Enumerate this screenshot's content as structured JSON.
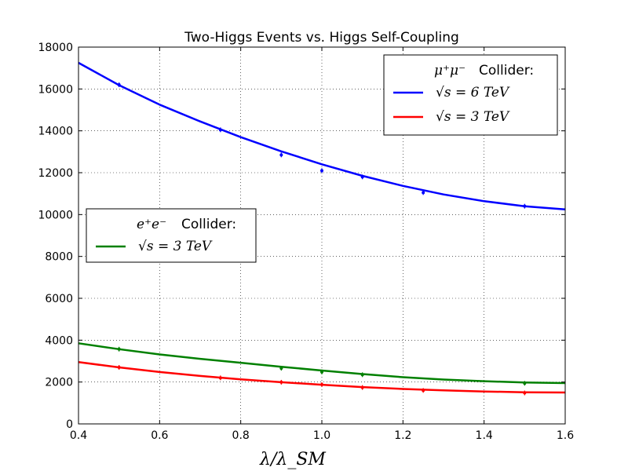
{
  "chart_data": {
    "type": "line",
    "title": "Two-Higgs Events vs. Higgs Self-Coupling",
    "xlabel": "λ/λ_SM",
    "ylabel": "",
    "xlim": [
      0.4,
      1.6
    ],
    "ylim": [
      0,
      18000
    ],
    "xticks": [
      "0.4",
      "0.6",
      "0.8",
      "1.0",
      "1.2",
      "1.4",
      "1.6"
    ],
    "yticks": [
      "0",
      "2000",
      "4000",
      "6000",
      "8000",
      "10000",
      "12000",
      "14000",
      "16000",
      "18000"
    ],
    "grid": true,
    "series": [
      {
        "name": "√s = 6 TeV",
        "collider": "μ+μ−",
        "color": "#0000ff",
        "fit": [
          [
            0.4,
            17250
          ],
          [
            0.5,
            16180
          ],
          [
            0.6,
            15250
          ],
          [
            0.7,
            14450
          ],
          [
            0.8,
            13700
          ],
          [
            0.9,
            13020
          ],
          [
            1.0,
            12400
          ],
          [
            1.1,
            11850
          ],
          [
            1.2,
            11370
          ],
          [
            1.3,
            10960
          ],
          [
            1.4,
            10640
          ],
          [
            1.5,
            10400
          ],
          [
            1.6,
            10250
          ]
        ],
        "points": [
          [
            0.5,
            16200
          ],
          [
            0.75,
            14050
          ],
          [
            0.9,
            12850
          ],
          [
            1.0,
            12100
          ],
          [
            1.1,
            11800
          ],
          [
            1.25,
            11050
          ],
          [
            1.5,
            10400
          ]
        ]
      },
      {
        "name": "√s = 3 TeV",
        "collider": "μ+μ−",
        "color": "#ff0000",
        "fit": [
          [
            0.4,
            2950
          ],
          [
            0.5,
            2700
          ],
          [
            0.6,
            2480
          ],
          [
            0.7,
            2290
          ],
          [
            0.8,
            2130
          ],
          [
            0.9,
            1990
          ],
          [
            1.0,
            1870
          ],
          [
            1.1,
            1760
          ],
          [
            1.2,
            1670
          ],
          [
            1.3,
            1600
          ],
          [
            1.4,
            1550
          ],
          [
            1.5,
            1510
          ],
          [
            1.6,
            1500
          ]
        ],
        "points": [
          [
            0.5,
            2700
          ],
          [
            0.75,
            2200
          ],
          [
            0.9,
            1990
          ],
          [
            1.0,
            1880
          ],
          [
            1.1,
            1740
          ],
          [
            1.25,
            1600
          ],
          [
            1.5,
            1480
          ]
        ]
      },
      {
        "name": "√s = 3 TeV",
        "collider": "e+e−",
        "color": "#008000",
        "fit": [
          [
            0.4,
            3850
          ],
          [
            0.5,
            3570
          ],
          [
            0.6,
            3320
          ],
          [
            0.7,
            3110
          ],
          [
            0.8,
            2920
          ],
          [
            0.9,
            2730
          ],
          [
            1.0,
            2550
          ],
          [
            1.1,
            2380
          ],
          [
            1.2,
            2230
          ],
          [
            1.3,
            2120
          ],
          [
            1.4,
            2040
          ],
          [
            1.5,
            1980
          ],
          [
            1.6,
            1950
          ]
        ],
        "points": [
          [
            0.5,
            3570
          ],
          [
            0.9,
            2660
          ],
          [
            1.0,
            2480
          ],
          [
            1.1,
            2350
          ],
          [
            1.5,
            1940
          ]
        ]
      }
    ],
    "legends": [
      {
        "placement": "top-right",
        "header_math": "μ⁺μ⁻",
        "header_text": "Collider:",
        "entries": [
          {
            "label": "√s = 6 TeV",
            "color": "#0000ff"
          },
          {
            "label": "√s = 3 TeV",
            "color": "#ff0000"
          }
        ]
      },
      {
        "placement": "center-left",
        "header_math": "e⁺e⁻",
        "header_text": "Collider:",
        "entries": [
          {
            "label": "√s = 3 TeV",
            "color": "#008000"
          }
        ]
      }
    ]
  }
}
